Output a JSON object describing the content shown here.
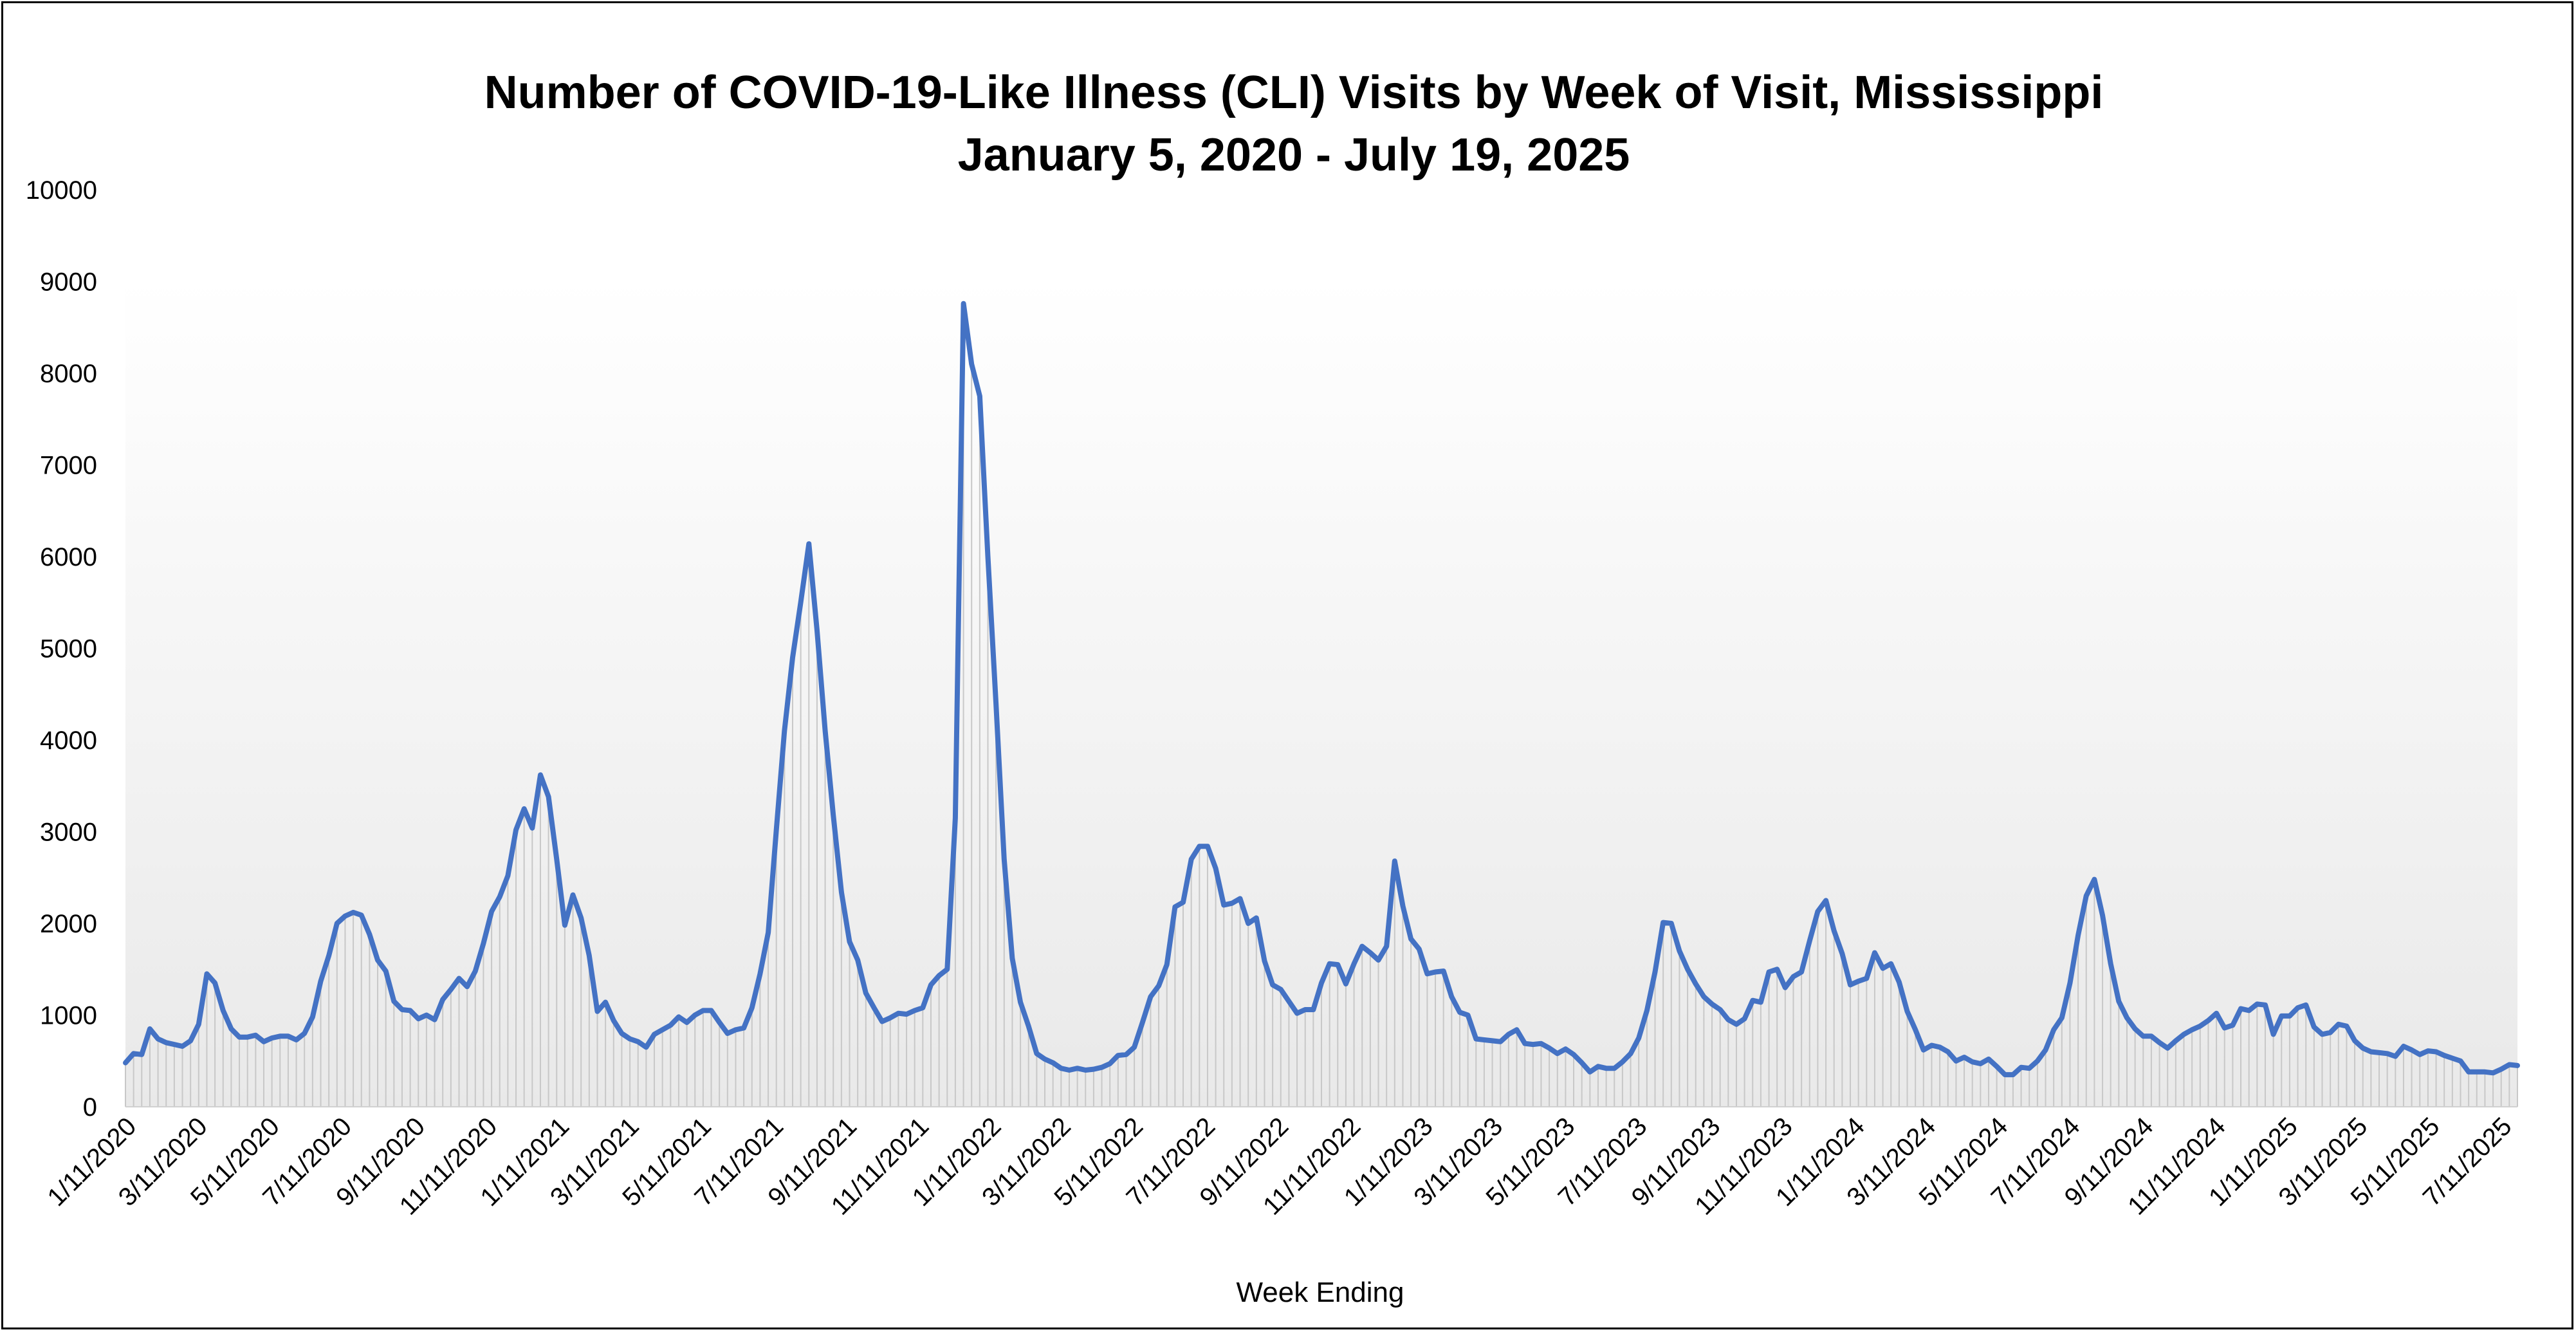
{
  "chart_data": {
    "type": "line",
    "title": "Number of COVID-19-Like Illness (CLI) Visits by Week of Visit, Mississippi",
    "subtitle": "January 5, 2020 - July 19, 2025",
    "xlabel": "Week Ending",
    "ylabel": "",
    "ylim": [
      0,
      10000
    ],
    "y_ticks": [
      "0",
      "1000",
      "2000",
      "3000",
      "4000",
      "5000",
      "6000",
      "7000",
      "8000",
      "9000",
      "10000"
    ],
    "x_tick_labels": [
      "1/11/2020",
      "3/11/2020",
      "5/11/2020",
      "7/11/2020",
      "9/11/2020",
      "11/11/2020",
      "1/11/2021",
      "3/11/2021",
      "5/11/2021",
      "7/11/2021",
      "9/11/2021",
      "11/11/2021",
      "1/11/2022",
      "3/11/2022",
      "5/11/2022",
      "7/11/2022",
      "9/11/2022",
      "11/11/2022",
      "1/11/2023",
      "3/11/2023",
      "5/11/2023",
      "7/11/2023",
      "9/11/2023",
      "11/11/2023",
      "1/11/2024",
      "3/11/2024",
      "5/11/2024",
      "7/11/2024",
      "9/11/2024",
      "11/11/2024",
      "1/11/2025",
      "3/11/2025",
      "5/11/2025",
      "7/11/2025"
    ],
    "grid": false,
    "legend": "none",
    "line_color": "#4472c4",
    "drop_line_color": "#c8c8c8",
    "x_start": "2020-01-05",
    "x_end": "2025-07-19",
    "x_interval": "weekly",
    "series": [
      {
        "values": [
          480,
          580,
          570,
          850,
          740,
          700,
          680,
          660,
          720,
          900,
          1450,
          1350,
          1050,
          850,
          760,
          760,
          780,
          710,
          750,
          770,
          770,
          730,
          800,
          980,
          1370,
          1650,
          2000,
          2080,
          2120,
          2090,
          1880,
          1600,
          1480,
          1150,
          1060,
          1050,
          960,
          1000,
          950,
          1170,
          1280,
          1400,
          1310,
          1480,
          1780,
          2130,
          2290,
          2520,
          3020,
          3250,
          3040,
          3620,
          3380,
          2700,
          1980,
          2310,
          2060,
          1650,
          1040,
          1140,
          940,
          800,
          740,
          710,
          650,
          790,
          840,
          890,
          980,
          920,
          1000,
          1050,
          1050,
          920,
          800,
          840,
          860,
          1080,
          1450,
          1900,
          3020,
          4100,
          4900,
          5500,
          6140,
          5200,
          4100,
          3180,
          2340,
          1800,
          1600,
          1240,
          1080,
          930,
          970,
          1020,
          1010,
          1050,
          1080,
          1330,
          1430,
          1500,
          3150,
          8760,
          8100,
          7750,
          6000,
          4400,
          2700,
          1620,
          1140,
          880,
          580,
          520,
          480,
          420,
          400,
          420,
          400,
          410,
          430,
          470,
          560,
          570,
          650,
          920,
          1200,
          1320,
          1550,
          2180,
          2230,
          2700,
          2840,
          2840,
          2600,
          2200,
          2220,
          2270,
          2000,
          2060,
          1590,
          1330,
          1280,
          1150,
          1020,
          1060,
          1060,
          1350,
          1560,
          1550,
          1340,
          1560,
          1750,
          1680,
          1600,
          1750,
          2680,
          2190,
          1830,
          1720,
          1450,
          1470,
          1480,
          1200,
          1030,
          1000,
          740,
          730,
          720,
          710,
          790,
          840,
          690,
          680,
          690,
          640,
          580,
          630,
          570,
          480,
          380,
          440,
          420,
          420,
          490,
          580,
          750,
          1050,
          1470,
          2010,
          2000,
          1700,
          1500,
          1340,
          1200,
          1120,
          1060,
          950,
          900,
          960,
          1160,
          1140,
          1470,
          1500,
          1300,
          1420,
          1470,
          1810,
          2130,
          2250,
          1920,
          1670,
          1330,
          1370,
          1400,
          1680,
          1510,
          1560,
          1360,
          1040,
          840,
          620,
          670,
          650,
          600,
          500,
          540,
          490,
          470,
          520,
          440,
          350,
          350,
          430,
          420,
          500,
          620,
          840,
          970,
          1350,
          1870,
          2300,
          2480,
          2090,
          1560,
          1150,
          970,
          850,
          770,
          770,
          700,
          640,
          720,
          790,
          840,
          880,
          940,
          1020,
          860,
          890,
          1070,
          1050,
          1120,
          1110,
          790,
          990,
          990,
          1080,
          1110,
          870,
          790,
          810,
          900,
          880,
          720,
          640,
          600,
          590,
          580,
          550,
          660,
          620,
          570,
          610,
          600,
          560,
          530,
          500,
          380,
          380,
          380,
          370,
          410,
          460,
          450
        ]
      }
    ]
  }
}
